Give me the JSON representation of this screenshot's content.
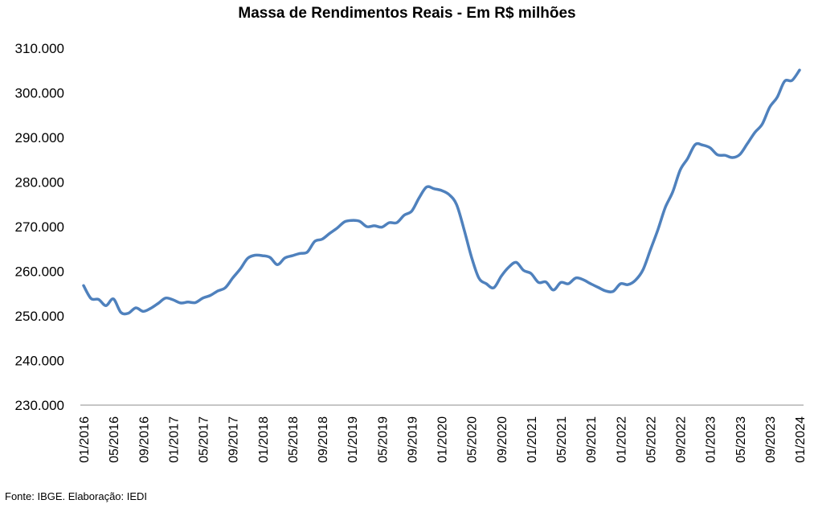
{
  "title": "Massa de Rendimentos Reais - Em R$ milhões",
  "footnote": "Fonte: IBGE. Elaboração: IEDI",
  "chart_data": {
    "type": "line",
    "title": "Massa de Rendimentos Reais - Em R$ milhões",
    "xlabel": "",
    "ylabel": "",
    "ylim": [
      230000,
      310000
    ],
    "y_ticks": [
      "230.000",
      "240.000",
      "250.000",
      "260.000",
      "270.000",
      "280.000",
      "290.000",
      "300.000",
      "310.000"
    ],
    "x_tick_labels": [
      "01/2016",
      "05/2016",
      "09/2016",
      "01/2017",
      "05/2017",
      "09/2017",
      "01/2018",
      "05/2018",
      "09/2018",
      "01/2019",
      "05/2019",
      "09/2019",
      "01/2020",
      "05/2020",
      "09/2020",
      "01/2021",
      "05/2021",
      "09/2021",
      "01/2022",
      "05/2022",
      "09/2022",
      "01/2023",
      "05/2023",
      "09/2023",
      "01/2024"
    ],
    "line_color": "#4f81bd",
    "grid": false,
    "legend": "none",
    "series": [
      {
        "x": [
          "01/2016",
          "02/2016",
          "03/2016",
          "04/2016",
          "05/2016",
          "06/2016",
          "07/2016",
          "08/2016",
          "09/2016",
          "10/2016",
          "11/2016",
          "12/2016",
          "01/2017",
          "02/2017",
          "03/2017",
          "04/2017",
          "05/2017",
          "06/2017",
          "07/2017",
          "08/2017",
          "09/2017",
          "10/2017",
          "11/2017",
          "12/2017",
          "01/2018",
          "02/2018",
          "03/2018",
          "04/2018",
          "05/2018",
          "06/2018",
          "07/2018",
          "08/2018",
          "09/2018",
          "10/2018",
          "11/2018",
          "12/2018",
          "01/2019",
          "02/2019",
          "03/2019",
          "04/2019",
          "05/2019",
          "06/2019",
          "07/2019",
          "08/2019",
          "09/2019",
          "10/2019",
          "11/2019",
          "12/2019",
          "01/2020",
          "02/2020",
          "03/2020",
          "04/2020",
          "05/2020",
          "06/2020",
          "07/2020",
          "08/2020",
          "09/2020",
          "10/2020",
          "11/2020",
          "12/2020",
          "01/2021",
          "02/2021",
          "03/2021",
          "04/2021",
          "05/2021",
          "06/2021",
          "07/2021",
          "08/2021",
          "09/2021",
          "10/2021",
          "11/2021",
          "12/2021",
          "01/2022",
          "02/2022",
          "03/2022",
          "04/2022",
          "05/2022",
          "06/2022",
          "07/2022",
          "08/2022",
          "09/2022",
          "10/2022",
          "11/2022",
          "12/2022",
          "01/2023",
          "02/2023",
          "03/2023",
          "04/2023",
          "05/2023",
          "06/2023",
          "07/2023",
          "08/2023",
          "09/2023",
          "10/2023",
          "11/2023",
          "12/2023",
          "01/2024"
        ],
        "values": [
          256800,
          253900,
          253700,
          252300,
          253800,
          250800,
          250600,
          251800,
          251000,
          251700,
          252800,
          254000,
          253600,
          252900,
          253100,
          253000,
          254000,
          254600,
          255600,
          256300,
          258500,
          260500,
          262900,
          263600,
          263500,
          263100,
          261500,
          263000,
          263500,
          264000,
          264300,
          266700,
          267200,
          268500,
          269700,
          271100,
          271400,
          271200,
          270000,
          270200,
          269900,
          270900,
          270900,
          272600,
          273500,
          276500,
          278900,
          278500,
          278100,
          277200,
          275000,
          269500,
          263300,
          258500,
          257200,
          256300,
          258900,
          260900,
          262000,
          260200,
          259500,
          257500,
          257600,
          255800,
          257500,
          257200,
          258500,
          258100,
          257200,
          256400,
          255600,
          255500,
          257200,
          257000,
          258000,
          260300,
          264800,
          269300,
          274300,
          277800,
          282700,
          285300,
          288400,
          288300,
          287700,
          286100,
          286000,
          285500,
          286200,
          288600,
          291100,
          293000,
          296800,
          299000,
          302600,
          302800,
          305100
        ]
      }
    ]
  }
}
